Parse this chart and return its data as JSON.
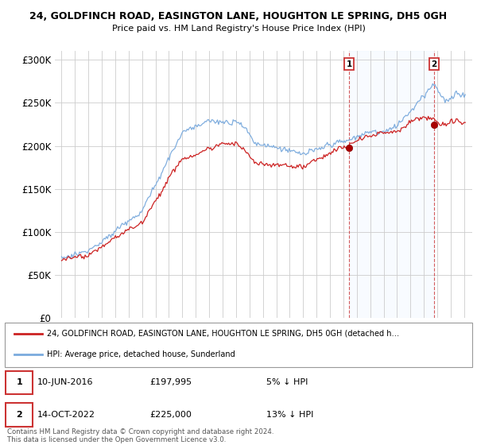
{
  "title": "24, GOLDFINCH ROAD, EASINGTON LANE, HOUGHTON LE SPRING, DH5 0GH",
  "subtitle": "Price paid vs. HM Land Registry's House Price Index (HPI)",
  "ylim": [
    0,
    310000
  ],
  "yticks": [
    0,
    50000,
    100000,
    150000,
    200000,
    250000,
    300000
  ],
  "ytick_labels": [
    "£0",
    "£50K",
    "£100K",
    "£150K",
    "£200K",
    "£250K",
    "£300K"
  ],
  "hpi_color": "#7aaadd",
  "price_color": "#cc2222",
  "sale1_date_label": "10-JUN-2016",
  "sale1_price": 197995,
  "sale1_pct": "5% ↓ HPI",
  "sale2_date_label": "14-OCT-2022",
  "sale2_price": 225000,
  "sale2_pct": "13% ↓ HPI",
  "legend_label_price": "24, GOLDFINCH ROAD, EASINGTON LANE, HOUGHTON LE SPRING, DH5 0GH (detached h…",
  "legend_label_hpi": "HPI: Average price, detached house, Sunderland",
  "footer": "Contains HM Land Registry data © Crown copyright and database right 2024.\nThis data is licensed under the Open Government Licence v3.0.",
  "grid_color": "#cccccc",
  "shade_color": "#ddeeff",
  "box_edge_color": "#cc3333"
}
